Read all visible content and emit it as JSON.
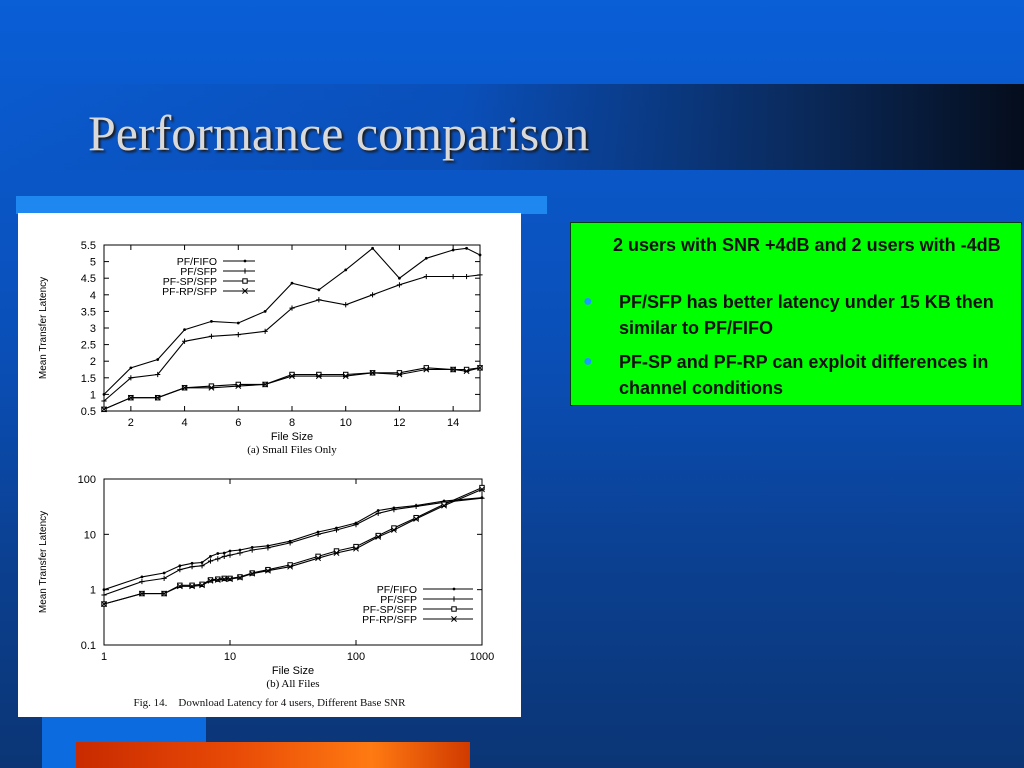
{
  "slide": {
    "title": "Performance comparison",
    "colors": {
      "background": "#0a5ed6",
      "title_text": "#d9d9d9",
      "box": "#00ff00",
      "bullet": "#1a9cff",
      "accent_bar": "#e84a06"
    }
  },
  "textbox": {
    "intro": "2 users with SNR +4dB and 2 users with -4dB",
    "bullets": [
      "PF/SFP has better latency under 15 KB then similar to PF/FIFO",
      "PF-SP and PF-RP can exploit differences in channel conditions"
    ],
    "bullet_glyph": "●"
  },
  "figure": {
    "caption_fig": "Fig. 14.",
    "caption_text": "Download Latency for 4 users, Different Base SNR"
  },
  "chart_data": [
    {
      "type": "line",
      "subtitle": "(a) Small Files Only",
      "xlabel": "File Size",
      "ylabel": "Mean Transfer Latency",
      "xlim": [
        1,
        15
      ],
      "ylim": [
        0.5,
        5.5
      ],
      "xticks": [
        2,
        4,
        6,
        8,
        10,
        12,
        14
      ],
      "yticks": [
        0.5,
        1,
        1.5,
        2,
        2.5,
        3,
        3.5,
        4,
        4.5,
        5,
        5.5
      ],
      "legend_position": "top-left",
      "grid": false,
      "series": [
        {
          "name": "PF/FIFO",
          "marker": "dot",
          "x": [
            1,
            2,
            3,
            4,
            5,
            6,
            7,
            8,
            9,
            10,
            11,
            12,
            13,
            14,
            14.5,
            15
          ],
          "y": [
            1.0,
            1.8,
            2.05,
            2.95,
            3.2,
            3.15,
            3.5,
            4.35,
            4.15,
            4.75,
            5.4,
            4.5,
            5.1,
            5.35,
            5.4,
            5.2
          ]
        },
        {
          "name": "PF/SFP",
          "marker": "plus",
          "x": [
            1,
            2,
            3,
            4,
            5,
            6,
            7,
            8,
            9,
            10,
            11,
            12,
            13,
            14,
            14.5,
            15
          ],
          "y": [
            0.8,
            1.5,
            1.6,
            2.6,
            2.75,
            2.8,
            2.9,
            3.6,
            3.85,
            3.7,
            4.0,
            4.3,
            4.55,
            4.55,
            4.55,
            4.6
          ]
        },
        {
          "name": "PF-SP/SFP",
          "marker": "square",
          "x": [
            1,
            2,
            3,
            4,
            5,
            6,
            7,
            8,
            9,
            10,
            11,
            12,
            13,
            14,
            14.5,
            15
          ],
          "y": [
            0.55,
            0.9,
            0.9,
            1.2,
            1.25,
            1.3,
            1.3,
            1.6,
            1.6,
            1.6,
            1.65,
            1.65,
            1.8,
            1.75,
            1.75,
            1.8
          ]
        },
        {
          "name": "PF-RP/SFP",
          "marker": "x",
          "x": [
            1,
            2,
            3,
            4,
            5,
            6,
            7,
            8,
            9,
            10,
            11,
            12,
            13,
            14,
            14.5,
            15
          ],
          "y": [
            0.55,
            0.9,
            0.9,
            1.2,
            1.2,
            1.25,
            1.3,
            1.55,
            1.55,
            1.55,
            1.65,
            1.6,
            1.75,
            1.75,
            1.7,
            1.8
          ]
        }
      ]
    },
    {
      "type": "line",
      "subtitle": "(b) All Files",
      "xlabel": "File Size",
      "ylabel": "Mean Transfer Latency",
      "xscale": "log",
      "yscale": "log",
      "xlim": [
        1,
        1000
      ],
      "ylim": [
        0.1,
        100
      ],
      "xticks": [
        1,
        10,
        100,
        1000
      ],
      "yticks": [
        0.1,
        1,
        10,
        100
      ],
      "legend_position": "bottom-right",
      "grid": false,
      "series": [
        {
          "name": "PF/FIFO",
          "marker": "dot",
          "x": [
            1,
            2,
            3,
            4,
            5,
            6,
            7,
            8,
            9,
            10,
            12,
            15,
            20,
            30,
            50,
            70,
            100,
            150,
            200,
            300,
            500,
            1000
          ],
          "y": [
            1.0,
            1.7,
            2.0,
            2.7,
            3.0,
            3.1,
            4.0,
            4.5,
            4.6,
            5.0,
            5.2,
            5.8,
            6.2,
            7.5,
            11,
            13,
            16,
            27,
            30,
            33,
            40,
            46
          ]
        },
        {
          "name": "PF/SFP",
          "marker": "plus",
          "x": [
            1,
            2,
            3,
            4,
            5,
            6,
            7,
            8,
            9,
            10,
            12,
            15,
            20,
            30,
            50,
            70,
            100,
            150,
            200,
            300,
            500,
            1000
          ],
          "y": [
            0.8,
            1.4,
            1.6,
            2.3,
            2.6,
            2.7,
            3.3,
            3.6,
            4.0,
            4.2,
            4.6,
            5.2,
            5.7,
            7.0,
            10,
            12,
            15,
            24,
            28,
            32,
            38,
            45
          ]
        },
        {
          "name": "PF-SP/SFP",
          "marker": "square",
          "x": [
            1,
            2,
            3,
            4,
            5,
            6,
            7,
            8,
            9,
            10,
            12,
            15,
            20,
            30,
            50,
            70,
            100,
            150,
            200,
            300,
            500,
            1000
          ],
          "y": [
            0.55,
            0.85,
            0.85,
            1.2,
            1.2,
            1.25,
            1.5,
            1.55,
            1.6,
            1.6,
            1.7,
            2.0,
            2.3,
            2.8,
            4.0,
            5.0,
            6.0,
            9.5,
            13,
            20,
            35,
            70
          ]
        },
        {
          "name": "PF-RP/SFP",
          "marker": "x",
          "x": [
            1,
            2,
            3,
            4,
            5,
            6,
            7,
            8,
            9,
            10,
            12,
            15,
            20,
            30,
            50,
            70,
            100,
            150,
            200,
            300,
            500,
            1000
          ],
          "y": [
            0.55,
            0.85,
            0.85,
            1.15,
            1.15,
            1.2,
            1.45,
            1.5,
            1.55,
            1.55,
            1.65,
            1.95,
            2.2,
            2.6,
            3.7,
            4.6,
            5.5,
            9.0,
            12,
            19,
            33,
            65
          ]
        }
      ]
    }
  ]
}
